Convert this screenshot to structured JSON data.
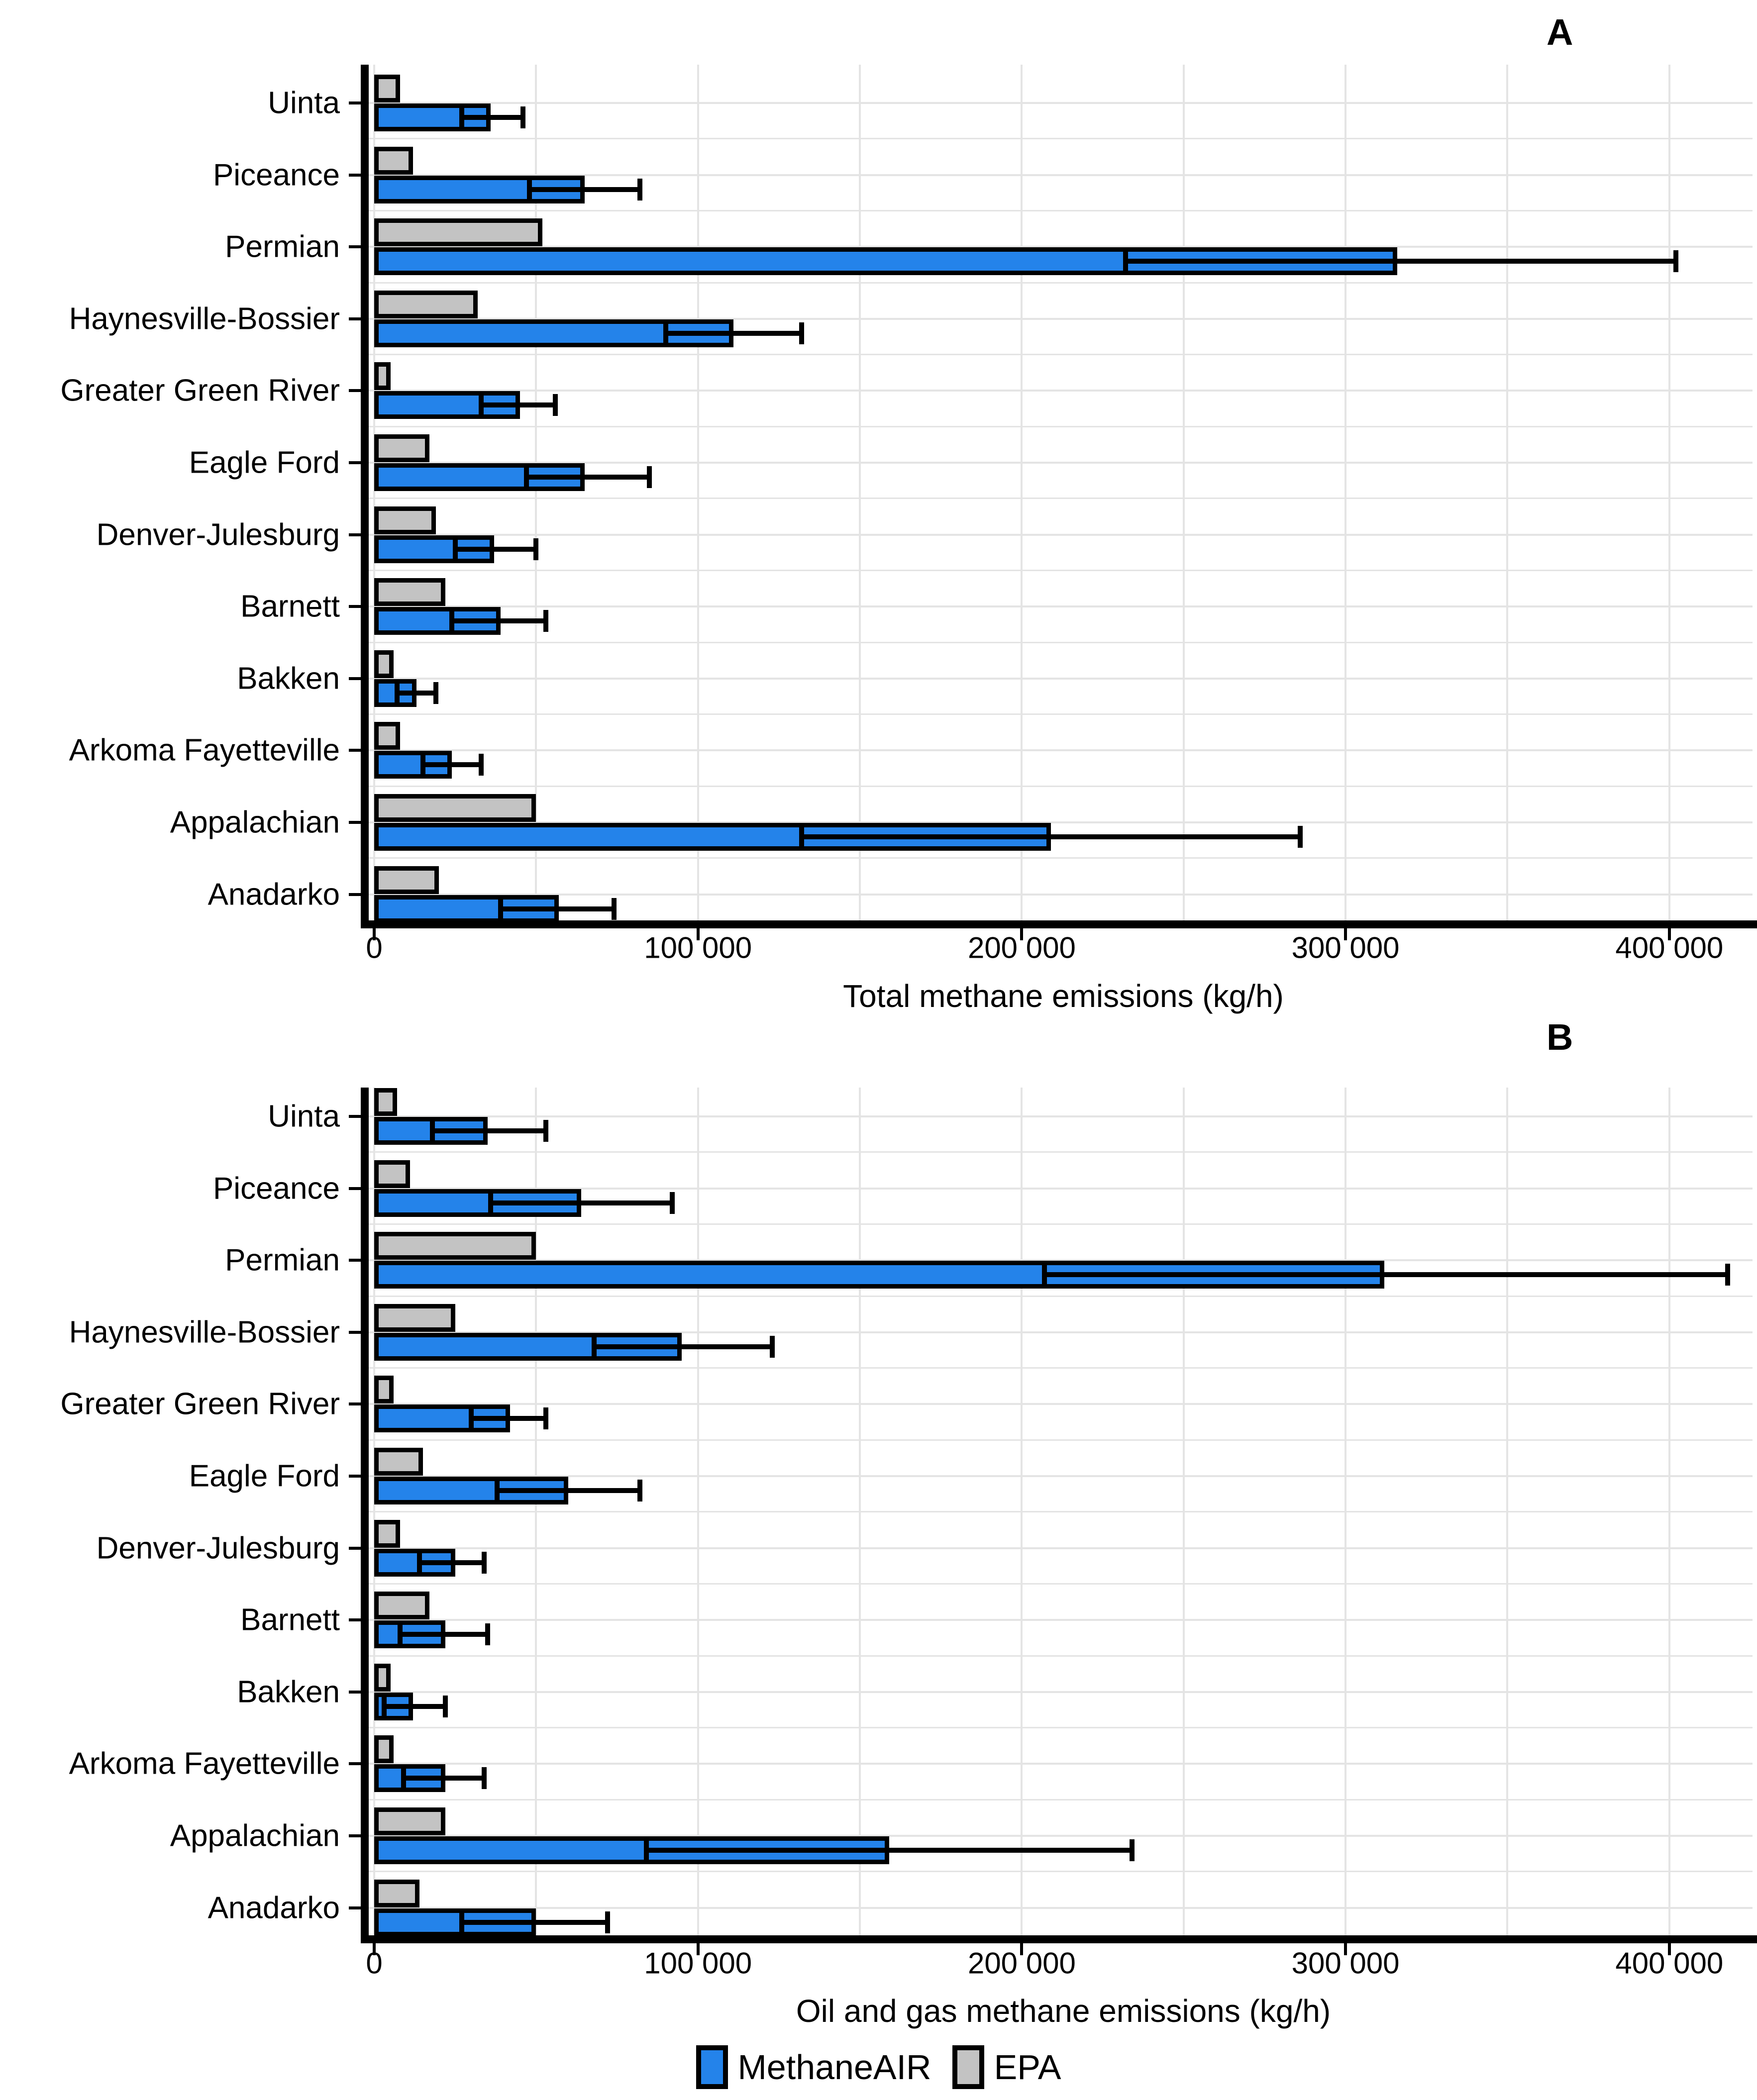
{
  "figure": {
    "panel_a_letter": "A",
    "panel_b_letter": "B",
    "colors": {
      "methaneair": "#2483ea",
      "epa": "#c3c3c3",
      "grid": "#e4e4e4",
      "axis": "#000000"
    },
    "legend": [
      {
        "label": "MethaneAIR",
        "color": "#2483ea"
      },
      {
        "label": "EPA",
        "color": "#c3c3c3"
      }
    ]
  },
  "chart_data": [
    {
      "type": "bar",
      "orientation": "horizontal",
      "title": "A",
      "xlabel": "Total methane emissions (kg/h)",
      "ylabel": "",
      "xlim": [
        0,
        430000
      ],
      "xticks": [
        0,
        100000,
        200000,
        300000,
        400000
      ],
      "xtick_labels": [
        "0",
        "100 000",
        "200 000",
        "300 000",
        "400 000"
      ],
      "grid": true,
      "legend_position": "bottom",
      "categories": [
        "Uinta",
        "Piceance",
        "Permian",
        "Haynesville-Bossier",
        "Greater Green River",
        "Eagle Ford",
        "Denver-Julesburg",
        "Barnett",
        "Bakken",
        "Arkoma Fayetteville",
        "Appalachian",
        "Anadarko"
      ],
      "series": [
        {
          "name": "MethaneAIR",
          "color": "#2483ea",
          "values": [
            36000,
            65000,
            316000,
            111000,
            45000,
            65000,
            37000,
            39000,
            13000,
            24000,
            209000,
            57000
          ],
          "error_low": [
            27000,
            48000,
            232000,
            90000,
            33000,
            47000,
            25000,
            24000,
            7000,
            15000,
            132000,
            39000
          ],
          "error_high": [
            46000,
            82000,
            402000,
            132000,
            56000,
            85000,
            50000,
            53000,
            19000,
            33000,
            286000,
            74000
          ]
        },
        {
          "name": "EPA",
          "color": "#c3c3c3",
          "values": [
            8000,
            12000,
            52000,
            32000,
            5000,
            17000,
            19000,
            22000,
            6000,
            8000,
            50000,
            20000
          ]
        }
      ]
    },
    {
      "type": "bar",
      "orientation": "horizontal",
      "title": "B",
      "xlabel": "Oil and gas methane emissions (kg/h)",
      "ylabel": "",
      "xlim": [
        0,
        430000
      ],
      "xticks": [
        0,
        100000,
        200000,
        300000,
        400000
      ],
      "xtick_labels": [
        "0",
        "100 000",
        "200 000",
        "300 000",
        "400 000"
      ],
      "grid": true,
      "legend_position": "bottom",
      "categories": [
        "Uinta",
        "Piceance",
        "Permian",
        "Haynesville-Bossier",
        "Greater Green River",
        "Eagle Ford",
        "Denver-Julesburg",
        "Barnett",
        "Bakken",
        "Arkoma Fayetteville",
        "Appalachian",
        "Anadarko"
      ],
      "series": [
        {
          "name": "MethaneAIR",
          "color": "#2483ea",
          "values": [
            35000,
            64000,
            312000,
            95000,
            42000,
            60000,
            25000,
            22000,
            12000,
            22000,
            159000,
            50000
          ],
          "error_low": [
            18000,
            36000,
            207000,
            68000,
            30000,
            38000,
            14000,
            8000,
            3000,
            9000,
            84000,
            27000
          ],
          "error_high": [
            53000,
            92000,
            418000,
            123000,
            53000,
            82000,
            34000,
            35000,
            22000,
            34000,
            234000,
            72000
          ]
        },
        {
          "name": "EPA",
          "color": "#c3c3c3",
          "values": [
            7000,
            11000,
            50000,
            25000,
            6000,
            15000,
            8000,
            17000,
            5000,
            6000,
            22000,
            14000
          ]
        }
      ]
    }
  ]
}
